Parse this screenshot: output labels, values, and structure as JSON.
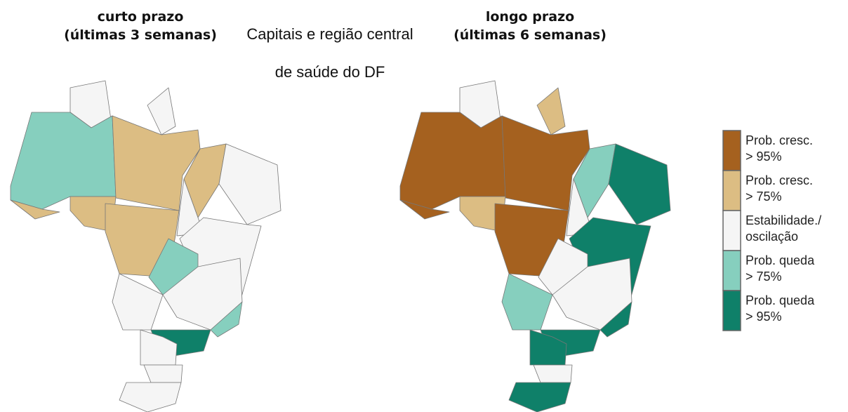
{
  "left_map": {
    "title": [
      "curto prazo",
      "(últimas 3 semanas)"
    ]
  },
  "center_title": [
    "Capitais e região central",
    "de saúde do DF"
  ],
  "right_map": {
    "title": [
      "longo prazo",
      "(últimas 6 semanas)"
    ]
  },
  "legend": [
    {
      "label": [
        "Prob. cresc.",
        "> 95%"
      ],
      "color": "#a5611f"
    },
    {
      "label": [
        "Prob. cresc.",
        "> 75%"
      ],
      "color": "#dcbd83"
    },
    {
      "label": [
        "Estabilidade./",
        "oscilação"
      ],
      "color": "#f5f5f5"
    },
    {
      "label": [
        "Prob. queda",
        "> 75%"
      ],
      "color": "#86cfbe"
    },
    {
      "label": [
        "Prob. queda",
        "> 95%"
      ],
      "color": "#0f8069"
    }
  ]
}
